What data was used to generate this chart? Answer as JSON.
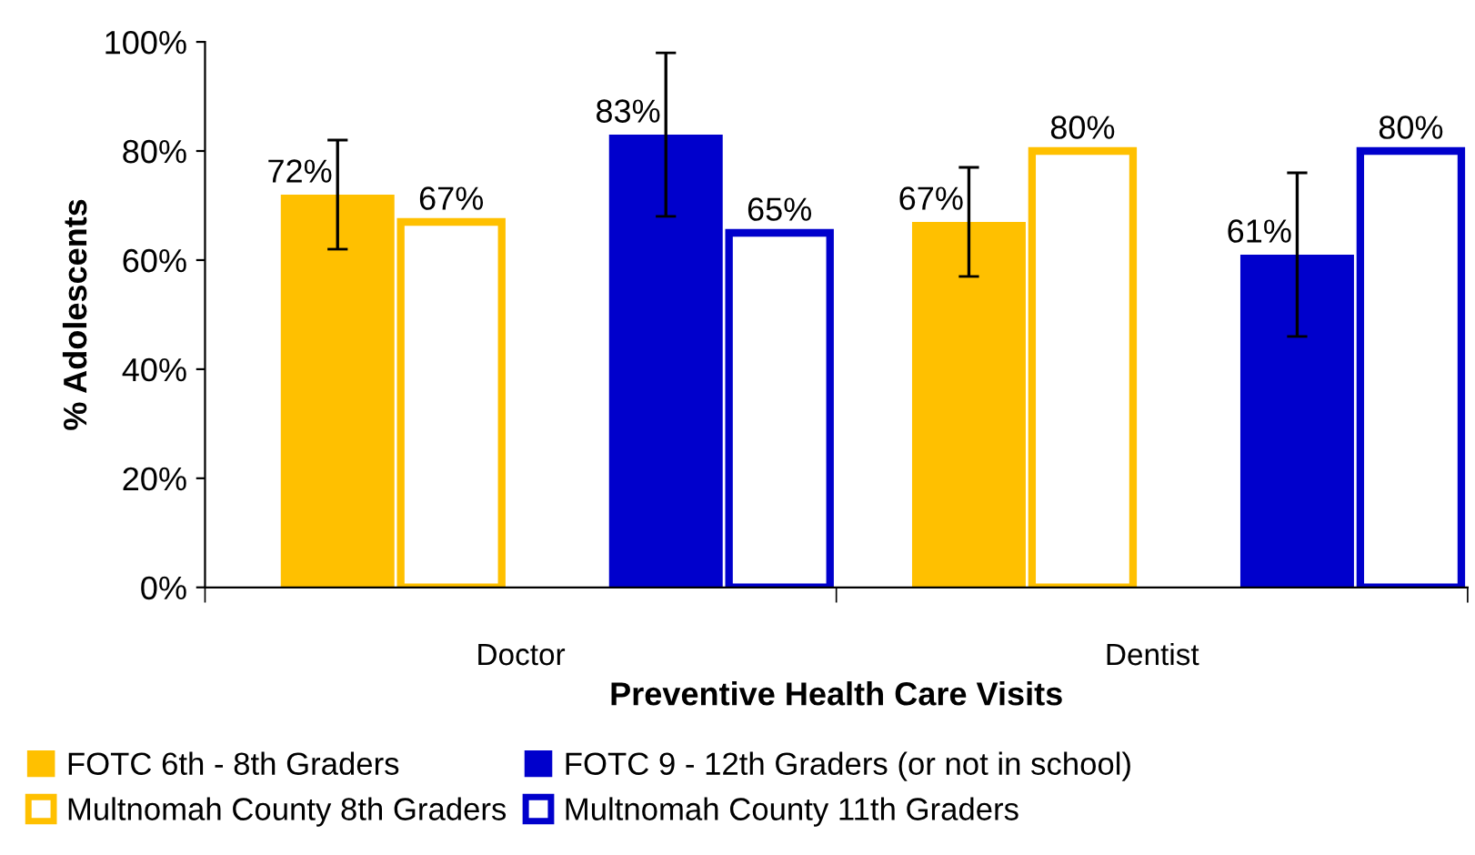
{
  "chart_data": {
    "type": "bar",
    "xlabel": "Preventive Health Care Visits",
    "ylabel": "% Adolescents",
    "categories": [
      "Doctor",
      "Dentist"
    ],
    "series": [
      {
        "name": "FOTC 6th - 8th Graders",
        "color": "#ffc000",
        "values": [
          72,
          67
        ],
        "errors": [
          10,
          10
        ],
        "value_labels": [
          "72%",
          "67%"
        ]
      },
      {
        "name": "Multnomah County 8th Graders",
        "color": "#ffc000",
        "values": [
          67,
          80
        ],
        "value_labels": [
          "67%",
          "80%"
        ]
      },
      {
        "name": "FOTC 9 - 12th Graders (or not in school)",
        "color": "#0000cc",
        "values": [
          83,
          61
        ],
        "errors": [
          15,
          15
        ],
        "value_labels": [
          "83%",
          "61%"
        ]
      },
      {
        "name": "Multnomah County 11th Graders",
        "color": "#0000cc",
        "values": [
          65,
          80
        ],
        "value_labels": [
          "65%",
          "80%"
        ]
      }
    ],
    "ylim": [
      0,
      100
    ],
    "yticks": [
      {
        "value": 0,
        "label": "0%"
      },
      {
        "value": 20,
        "label": "20%"
      },
      {
        "value": 40,
        "label": "40%"
      },
      {
        "value": 60,
        "label": "60%"
      },
      {
        "value": 80,
        "label": "80%"
      },
      {
        "value": 100,
        "label": "100%"
      }
    ],
    "grid": false,
    "legend": "bottom"
  }
}
